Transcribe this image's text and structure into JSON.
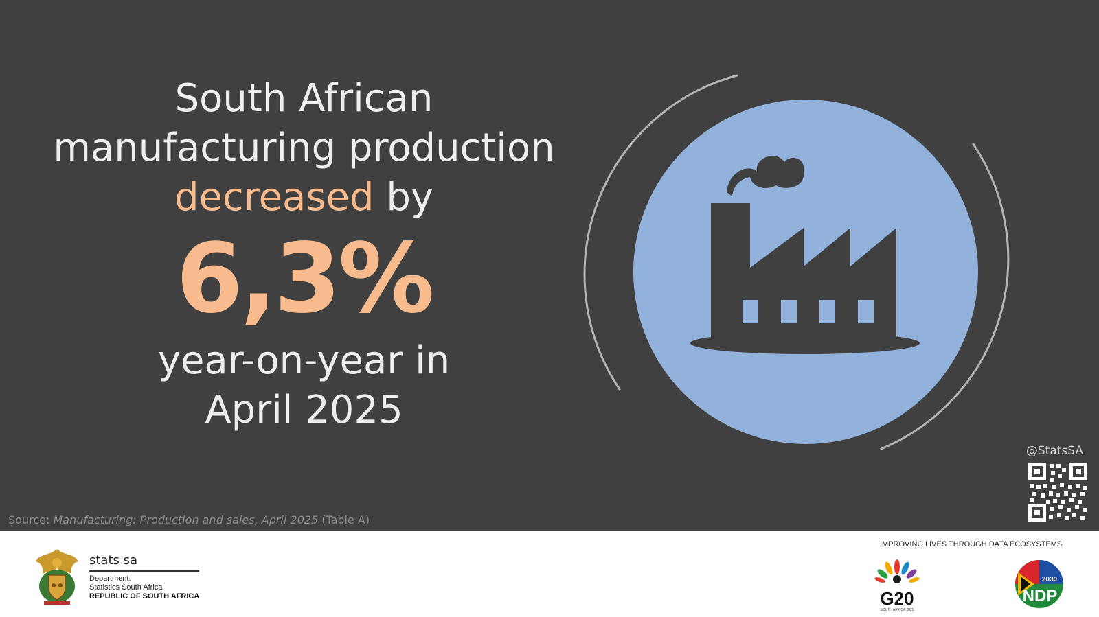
{
  "headline": {
    "line1": "South African",
    "line2": "manufacturing production",
    "highlight": "decreased",
    "after_highlight": " by",
    "value": "6,3%",
    "line4": "year-on-year in",
    "line5": "April 2025"
  },
  "source": {
    "prefix": "Source: ",
    "publication": "Manufacturing: Production and sales, April 2025",
    "suffix": " (Table A)"
  },
  "social_handle": "@StatsSA",
  "footer": {
    "brand_name": "stats sa",
    "department_line1": "Department:",
    "department_line2": "Statistics South Africa",
    "department_line3": "REPUBLIC OF SOUTH AFRICA",
    "tagline": "IMPROVING LIVES THROUGH DATA ECOSYSTEMS",
    "g20_label": "G20",
    "g20_sub": "SOUTH AFRICA 2025",
    "ndp_label": "NDP",
    "ndp_year": "2030"
  },
  "icons": [
    "factory-icon",
    "qr-code",
    "coat-of-arms-logo",
    "g20-logo",
    "ndp-logo"
  ],
  "colors": {
    "panel_background": "#404040",
    "accent": "#f8bb8e",
    "text": "#eeeeee",
    "circle_fill": "#92b1db",
    "factory_fill": "#404040",
    "ring": "#b5b5b5"
  }
}
